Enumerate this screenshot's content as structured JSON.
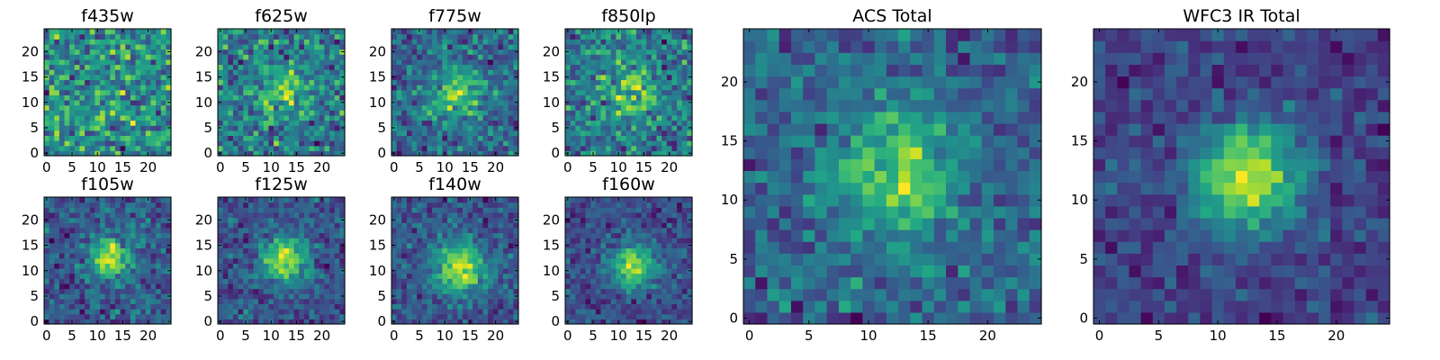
{
  "chart_data": [
    {
      "type": "heatmap",
      "title": "f435w",
      "x_ticks": [
        "0",
        "5",
        "10",
        "15",
        "20"
      ],
      "y_ticks": [
        "0",
        "5",
        "10",
        "15",
        "20"
      ],
      "xlim": [
        0,
        24
      ],
      "ylim": [
        0,
        24
      ],
      "grid_size": 25,
      "colormap": "viridis",
      "source_peak": [
        12.5,
        12.5
      ],
      "source_sigma": 3.5,
      "source_amplitude": 0.05,
      "noise_level": 0.55,
      "seed": 11
    },
    {
      "type": "heatmap",
      "title": "f625w",
      "x_ticks": [
        "0",
        "5",
        "10",
        "15",
        "20"
      ],
      "y_ticks": [
        "0",
        "5",
        "10",
        "15",
        "20"
      ],
      "xlim": [
        0,
        24
      ],
      "ylim": [
        0,
        24
      ],
      "grid_size": 25,
      "colormap": "viridis",
      "source_peak": [
        12.5,
        12.5
      ],
      "source_sigma": 3.5,
      "source_amplitude": 0.35,
      "noise_level": 0.5,
      "seed": 23
    },
    {
      "type": "heatmap",
      "title": "f775w",
      "x_ticks": [
        "0",
        "5",
        "10",
        "15",
        "20"
      ],
      "y_ticks": [
        "0",
        "5",
        "10",
        "15",
        "20"
      ],
      "xlim": [
        0,
        24
      ],
      "ylim": [
        0,
        24
      ],
      "grid_size": 25,
      "colormap": "viridis",
      "source_peak": [
        12.5,
        12.0
      ],
      "source_sigma": 3.8,
      "source_amplitude": 0.5,
      "noise_level": 0.45,
      "seed": 37
    },
    {
      "type": "heatmap",
      "title": "f850lp",
      "x_ticks": [
        "0",
        "5",
        "10",
        "15",
        "20"
      ],
      "y_ticks": [
        "0",
        "5",
        "10",
        "15",
        "20"
      ],
      "xlim": [
        0,
        24
      ],
      "ylim": [
        0,
        24
      ],
      "grid_size": 25,
      "colormap": "viridis",
      "source_peak": [
        12.5,
        12.0
      ],
      "source_sigma": 3.5,
      "source_amplitude": 0.4,
      "noise_level": 0.5,
      "seed": 41
    },
    {
      "type": "heatmap",
      "title": "f105w",
      "x_ticks": [
        "0",
        "5",
        "10",
        "15",
        "20"
      ],
      "y_ticks": [
        "0",
        "5",
        "10",
        "15",
        "20"
      ],
      "xlim": [
        0,
        24
      ],
      "ylim": [
        0,
        24
      ],
      "grid_size": 25,
      "colormap": "viridis",
      "source_peak": [
        12.5,
        12.5
      ],
      "source_sigma": 2.5,
      "source_amplitude": 0.75,
      "noise_level": 0.32,
      "seed": 53
    },
    {
      "type": "heatmap",
      "title": "f125w",
      "x_ticks": [
        "0",
        "5",
        "10",
        "15",
        "20"
      ],
      "y_ticks": [
        "0",
        "5",
        "10",
        "15",
        "20"
      ],
      "xlim": [
        0,
        24
      ],
      "ylim": [
        0,
        24
      ],
      "grid_size": 25,
      "colormap": "viridis",
      "source_peak": [
        12.5,
        12.5
      ],
      "source_sigma": 3.0,
      "source_amplitude": 0.75,
      "noise_level": 0.3,
      "seed": 67
    },
    {
      "type": "heatmap",
      "title": "f140w",
      "x_ticks": [
        "0",
        "5",
        "10",
        "15",
        "20"
      ],
      "y_ticks": [
        "0",
        "5",
        "10",
        "15",
        "20"
      ],
      "xlim": [
        0,
        24
      ],
      "ylim": [
        0,
        24
      ],
      "grid_size": 25,
      "colormap": "viridis",
      "source_peak": [
        13.0,
        10.5
      ],
      "source_sigma": 3.5,
      "source_amplitude": 0.7,
      "noise_level": 0.3,
      "seed": 79
    },
    {
      "type": "heatmap",
      "title": "f160w",
      "x_ticks": [
        "0",
        "5",
        "10",
        "15",
        "20"
      ],
      "y_ticks": [
        "0",
        "5",
        "10",
        "15",
        "20"
      ],
      "xlim": [
        0,
        24
      ],
      "ylim": [
        0,
        24
      ],
      "grid_size": 25,
      "colormap": "viridis",
      "source_peak": [
        13.0,
        11.0
      ],
      "source_sigma": 3.0,
      "source_amplitude": 0.75,
      "noise_level": 0.3,
      "seed": 83
    },
    {
      "type": "heatmap",
      "title": "ACS Total",
      "x_ticks": [
        "0",
        "5",
        "10",
        "15",
        "20"
      ],
      "y_ticks": [
        "0",
        "5",
        "10",
        "15",
        "20"
      ],
      "xlim": [
        0,
        24
      ],
      "ylim": [
        0,
        24
      ],
      "grid_size": 25,
      "colormap": "viridis",
      "source_peak": [
        12.5,
        12.0
      ],
      "source_sigma": 3.5,
      "source_amplitude": 0.55,
      "noise_level": 0.35,
      "seed": 97
    },
    {
      "type": "heatmap",
      "title": "WFC3 IR Total",
      "x_ticks": [
        "0",
        "5",
        "10",
        "15",
        "20"
      ],
      "y_ticks": [
        "0",
        "5",
        "10",
        "15",
        "20"
      ],
      "xlim": [
        0,
        24
      ],
      "ylim": [
        0,
        24
      ],
      "grid_size": 25,
      "colormap": "viridis",
      "source_peak": [
        12.5,
        12.0
      ],
      "source_sigma": 3.2,
      "source_amplitude": 0.85,
      "noise_level": 0.25,
      "seed": 101
    }
  ]
}
